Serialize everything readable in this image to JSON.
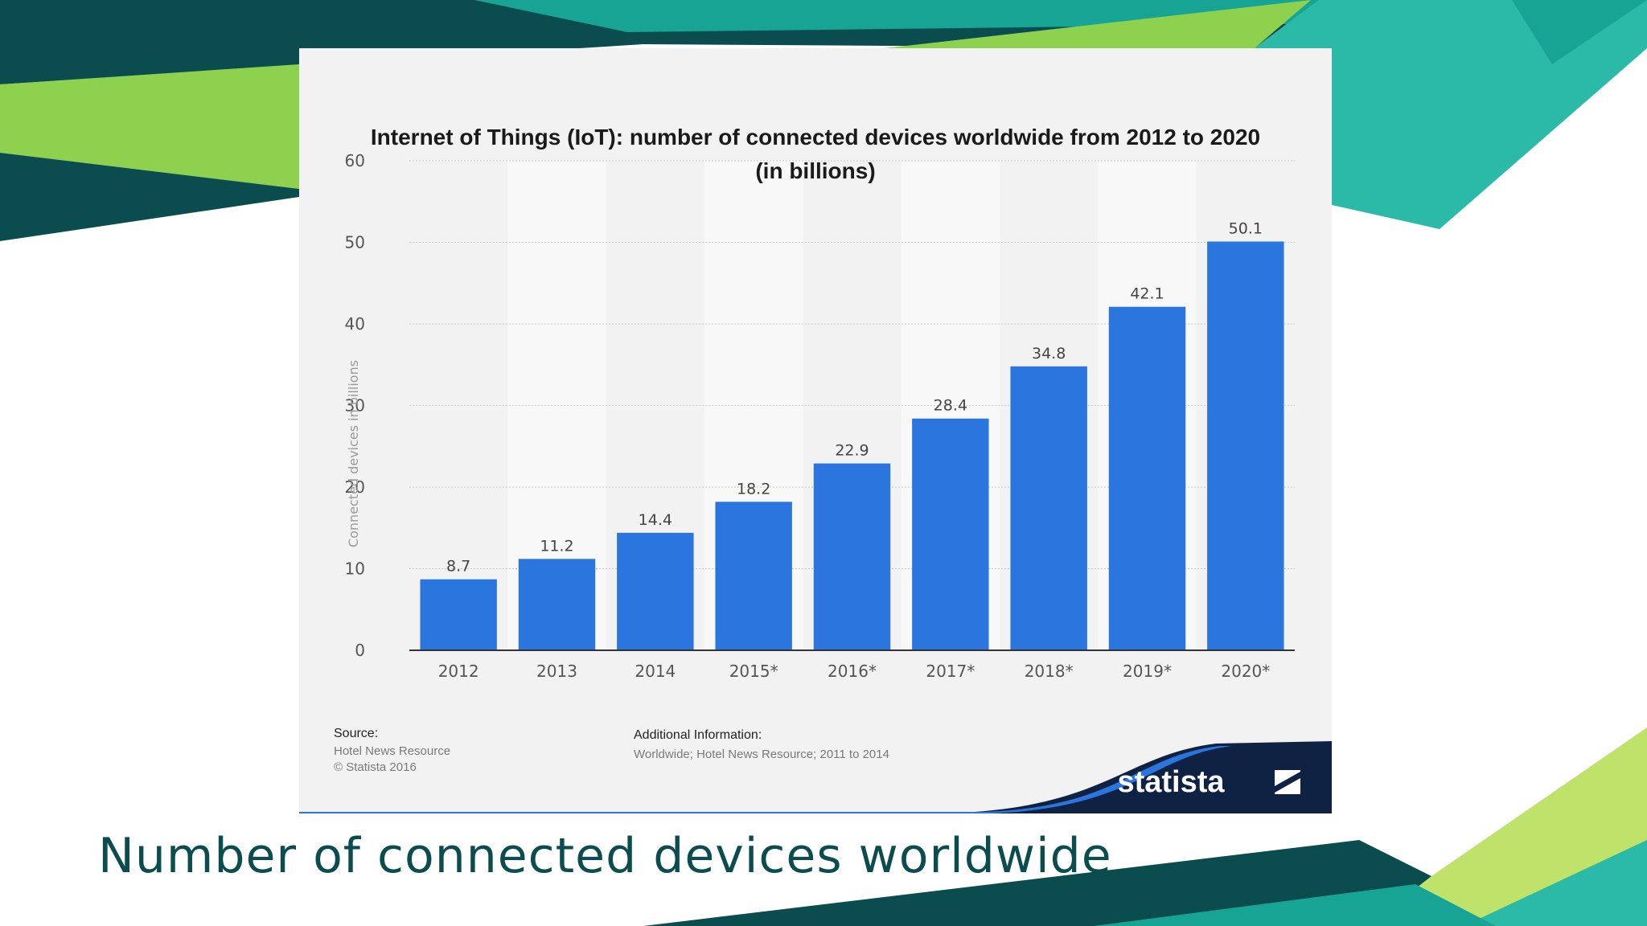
{
  "slide": {
    "caption": "Number of connected devices worldwide"
  },
  "colors": {
    "dark_teal": "#0b4d4f",
    "teal": "#2bbaa8",
    "mid_teal": "#17a495",
    "green": "#8ed14e",
    "bar_blue": "#2a75de",
    "card_bg": "#f2f2f2",
    "logo_navy": "#0f2244"
  },
  "chart_data": {
    "type": "bar",
    "title": "Internet of Things (IoT): number of connected devices worldwide from 2012 to 2020 (in billions)",
    "ylabel": "Connected devices in billions",
    "xlabel": "",
    "categories": [
      "2012",
      "2013",
      "2014",
      "2015*",
      "2016*",
      "2017*",
      "2018*",
      "2019*",
      "2020*"
    ],
    "values": [
      8.7,
      11.2,
      14.4,
      18.2,
      22.9,
      28.4,
      34.8,
      42.1,
      50.1
    ],
    "data_labels": [
      "8.7",
      "11.2",
      "14.4",
      "18.2",
      "22.9",
      "28.4",
      "34.8",
      "42.1",
      "50.1"
    ],
    "ylim": [
      0,
      60
    ],
    "yticks": [
      0,
      10,
      20,
      30,
      40,
      50,
      60
    ],
    "ytick_labels": [
      "0",
      "10",
      "20",
      "30",
      "40",
      "50",
      "60"
    ],
    "grid": true
  },
  "footer": {
    "source_label": "Source:",
    "source_lines": [
      "Hotel News Resource",
      "© Statista 2016"
    ],
    "info_label": "Additional Information:",
    "info_line": "Worldwide; Hotel News Resource; 2011 to 2014",
    "logo_text": "statista",
    "logo_icon": "statista-logo-icon"
  }
}
